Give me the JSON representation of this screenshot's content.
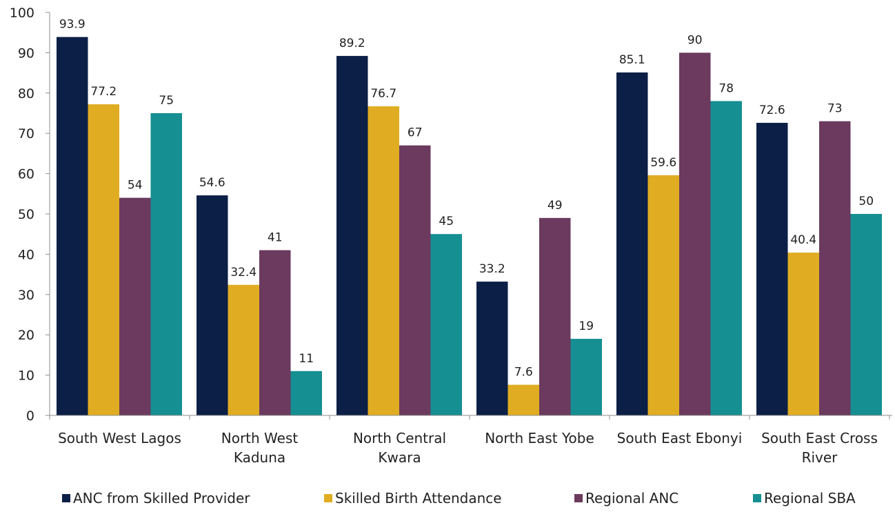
{
  "chart_data": {
    "type": "bar",
    "title": "",
    "xlabel": "",
    "ylabel": "",
    "ylim": [
      0,
      100
    ],
    "yticks": [
      0,
      10,
      20,
      30,
      40,
      50,
      60,
      70,
      80,
      90,
      100
    ],
    "grid": false,
    "legend_position": "bottom",
    "categories": [
      [
        "South West Lagos"
      ],
      [
        "North West",
        "Kaduna"
      ],
      [
        "North Central",
        "Kwara"
      ],
      [
        "North East Yobe"
      ],
      [
        "South East Ebonyi"
      ],
      [
        "South East Cross",
        "River"
      ]
    ],
    "series": [
      {
        "name": "ANC from Skilled Provider",
        "color": "#0c1f47",
        "values": [
          93.9,
          54.6,
          89.2,
          33.2,
          85.1,
          72.6
        ],
        "labels": [
          "93.9",
          "54.6",
          "89.2",
          "33.2",
          "85.1",
          "72.6"
        ]
      },
      {
        "name": "Skilled Birth Attendance",
        "color": "#e0ad22",
        "values": [
          77.2,
          32.4,
          76.7,
          7.6,
          59.6,
          40.4
        ],
        "labels": [
          "77.2",
          "32.4",
          "76.7",
          "7.6",
          "59.6",
          "40.4"
        ]
      },
      {
        "name": "Regional ANC",
        "color": "#6b3a5e",
        "values": [
          54,
          41,
          67,
          49,
          90,
          73
        ],
        "labels": [
          "54",
          "41",
          "67",
          "49",
          "90",
          "73"
        ]
      },
      {
        "name": "Regional SBA",
        "color": "#158f92",
        "values": [
          75,
          11,
          45,
          19,
          78,
          50
        ],
        "labels": [
          "75",
          "11",
          "45",
          "19",
          "78",
          "50"
        ]
      }
    ]
  }
}
